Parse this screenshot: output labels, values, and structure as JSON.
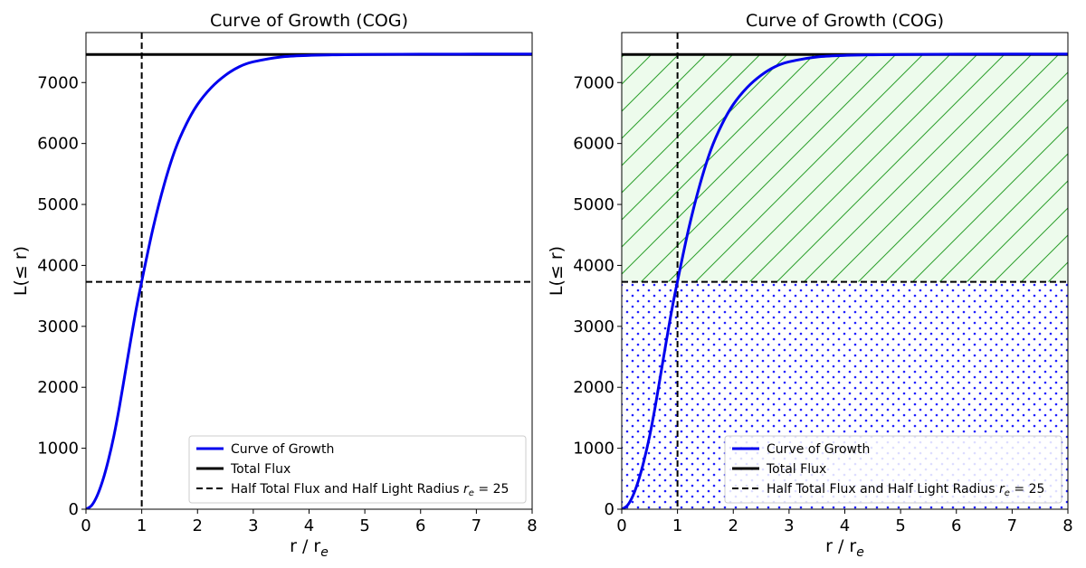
{
  "chart_data": [
    {
      "type": "line",
      "title": "Curve of Growth (COG)",
      "xlabel": "r / r",
      "xlabel_sub": "e",
      "ylabel": "L(≤ r)",
      "xlim": [
        0,
        8
      ],
      "ylim": [
        0,
        7820
      ],
      "x_ticks": [
        0,
        1,
        2,
        3,
        4,
        5,
        6,
        7,
        8
      ],
      "y_ticks": [
        0,
        1000,
        2000,
        3000,
        4000,
        5000,
        6000,
        7000
      ],
      "grid": false,
      "legend_position": "lower-right",
      "series": [
        {
          "name": "Curve of Growth",
          "color": "#0000ee",
          "style": "solid",
          "x": [
            0,
            0.1,
            0.2,
            0.3,
            0.4,
            0.5,
            0.6,
            0.7,
            0.8,
            0.9,
            1.0,
            1.2,
            1.4,
            1.6,
            1.8,
            2.0,
            2.25,
            2.5,
            2.75,
            3.0,
            3.5,
            4.0,
            4.5,
            5.0,
            6.0,
            7.0,
            8.0
          ],
          "y": [
            0,
            60,
            220,
            470,
            800,
            1200,
            1680,
            2220,
            2760,
            3280,
            3740,
            4600,
            5320,
            5900,
            6320,
            6640,
            6920,
            7120,
            7260,
            7340,
            7420,
            7445,
            7455,
            7460,
            7465,
            7467,
            7468
          ]
        },
        {
          "name": "Total Flux",
          "color": "#000000",
          "style": "solid",
          "value": 7460
        },
        {
          "name": "Half Total Flux and Half Light Radius ",
          "name_math": "r",
          "name_math_sub": "e",
          "name_math_tail": " = 25",
          "color": "#000000",
          "style": "dashed",
          "y_value": 3730,
          "x_value": 1
        }
      ],
      "fills": []
    },
    {
      "type": "line",
      "title": "Curve of Growth (COG)",
      "xlabel": "r / r",
      "xlabel_sub": "e",
      "ylabel": "L(≤ r)",
      "xlim": [
        0,
        8
      ],
      "ylim": [
        0,
        7820
      ],
      "x_ticks": [
        0,
        1,
        2,
        3,
        4,
        5,
        6,
        7,
        8
      ],
      "y_ticks": [
        0,
        1000,
        2000,
        3000,
        4000,
        5000,
        6000,
        7000
      ],
      "grid": false,
      "legend_position": "lower-right",
      "series": [
        {
          "name": "Curve of Growth",
          "color": "#0000ee",
          "style": "solid",
          "x": [
            0,
            0.1,
            0.2,
            0.3,
            0.4,
            0.5,
            0.6,
            0.7,
            0.8,
            0.9,
            1.0,
            1.2,
            1.4,
            1.6,
            1.8,
            2.0,
            2.25,
            2.5,
            2.75,
            3.0,
            3.5,
            4.0,
            4.5,
            5.0,
            6.0,
            7.0,
            8.0
          ],
          "y": [
            0,
            60,
            220,
            470,
            800,
            1200,
            1680,
            2220,
            2760,
            3280,
            3740,
            4600,
            5320,
            5900,
            6320,
            6640,
            6920,
            7120,
            7260,
            7340,
            7420,
            7445,
            7455,
            7460,
            7465,
            7467,
            7468
          ]
        },
        {
          "name": "Total Flux",
          "color": "#000000",
          "style": "solid",
          "value": 7460
        },
        {
          "name": "Half Total Flux and Half Light Radius ",
          "name_math": "r",
          "name_math_sub": "e",
          "name_math_tail": " = 25",
          "color": "#000000",
          "style": "dashed",
          "y_value": 3730,
          "x_value": 1
        }
      ],
      "fills": [
        {
          "from": 3730,
          "to": 7460,
          "pattern": "hatch",
          "color": "#2ca02c",
          "background": "#edfbec"
        },
        {
          "from": 0,
          "to": 3730,
          "pattern": "dots",
          "color": "#2020ff",
          "background": "#ffffff"
        }
      ]
    }
  ]
}
